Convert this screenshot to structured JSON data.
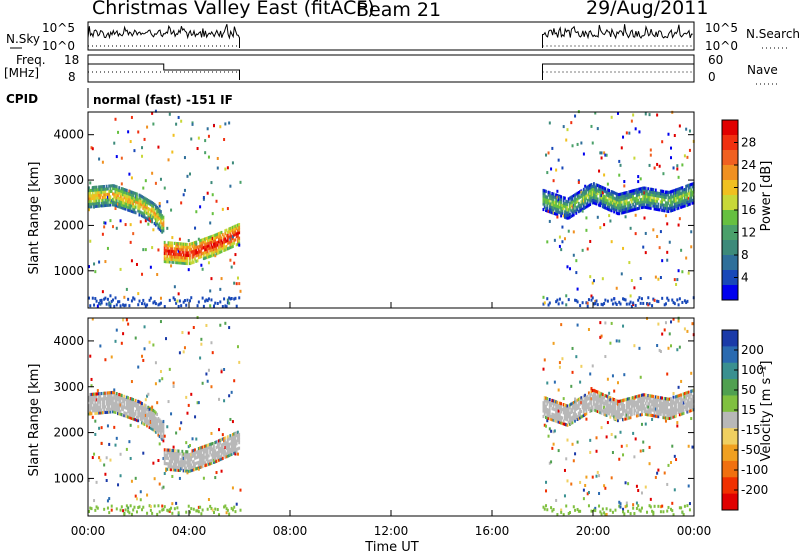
{
  "header": {
    "title": "Christmas Valley East (fitACF)",
    "beam": "Beam 21",
    "date": "29/Aug/2011"
  },
  "top_panels": {
    "nsky_label": "N.Sky",
    "nsky_ticks": [
      "10^5",
      "10^0"
    ],
    "nsearch_label": "N.Search",
    "nsearch_ticks": [
      "10^5",
      "10^0"
    ],
    "freq_label_line1": "Freq.",
    "freq_label_line2": "[MHz]",
    "freq_ticks": [
      "18",
      "8"
    ],
    "nave_label": "Nave",
    "nave_ticks": [
      "60",
      "0"
    ],
    "cpid_label": "CPID",
    "cpid_text": "normal (fast) -151 IF"
  },
  "chart_data": [
    {
      "type": "heatmap",
      "title": "",
      "ylabel": "Slant Range [km]",
      "ylim": [
        180,
        4500
      ],
      "yticks": [
        "1000",
        "2000",
        "3000",
        "4000"
      ],
      "xlim_hours": [
        0,
        24
      ],
      "xticks": [
        "00:00",
        "04:00",
        "08:00",
        "12:00",
        "16:00",
        "20:00",
        "00:00"
      ],
      "colorbar": {
        "label": "Power [dB]",
        "ticks": [
          "4",
          "8",
          "12",
          "16",
          "20",
          "24",
          "28"
        ],
        "colors": [
          "#0000ee",
          "#1848b8",
          "#2f6f9a",
          "#3d8a7a",
          "#4aa06a",
          "#66c040",
          "#c8d838",
          "#f0c020",
          "#f09020",
          "#f06020",
          "#f03010",
          "#e00000"
        ]
      },
      "data_windows_hours": [
        [
          0,
          6
        ],
        [
          18,
          24
        ]
      ],
      "echo_bands": [
        {
          "name": "",
          "t": [
            0,
            1,
            2,
            2.6,
            3.0
          ],
          "range_km": [
            2600,
            2650,
            2450,
            2250,
            2000
          ],
          "power_db": 20
        },
        {
          "name": "",
          "t": [
            3.0,
            4.0,
            5.0,
            6.0
          ],
          "range_km": [
            1400,
            1350,
            1550,
            1800
          ],
          "power_db": 28
        },
        {
          "name": "",
          "t": [
            18,
            19,
            20,
            21,
            22,
            23,
            24
          ],
          "range_km": [
            2550,
            2350,
            2700,
            2450,
            2600,
            2500,
            2700
          ],
          "power_db": 14
        }
      ]
    },
    {
      "type": "heatmap",
      "title": "",
      "ylabel": "Slant Range [km]",
      "ylim": [
        180,
        4500
      ],
      "yticks": [
        "1000",
        "2000",
        "3000",
        "4000"
      ],
      "xlabel": "Time UT",
      "xticks": [
        "00:00",
        "04:00",
        "08:00",
        "12:00",
        "16:00",
        "20:00",
        "00:00"
      ],
      "colorbar": {
        "label": "Velocity [m s⁻¹]",
        "ticks": [
          "200",
          "100",
          "50",
          "15",
          "-15",
          "-50",
          "-100",
          "-200"
        ],
        "colors": [
          "#1a3aa8",
          "#2a6ab0",
          "#3a9090",
          "#50a050",
          "#80c040",
          "#b8b8b8",
          "#f0d060",
          "#f0a020",
          "#f07010",
          "#f03000",
          "#e00000"
        ]
      },
      "data_windows_hours": [
        [
          0,
          6
        ],
        [
          18,
          24
        ]
      ],
      "echo_bands": [
        {
          "name": "",
          "t": [
            0,
            1,
            2,
            2.6,
            3.0
          ],
          "range_km": [
            2600,
            2650,
            2450,
            2250,
            2000
          ],
          "velocity": 0
        },
        {
          "name": "",
          "t": [
            3.0,
            4.0,
            5.0,
            6.0
          ],
          "range_km": [
            1400,
            1350,
            1550,
            1800
          ],
          "velocity": 0
        },
        {
          "name": "",
          "t": [
            18,
            19,
            20,
            21,
            22,
            23,
            24
          ],
          "range_km": [
            2550,
            2350,
            2700,
            2450,
            2600,
            2500,
            2700
          ],
          "velocity": 0
        }
      ]
    }
  ]
}
